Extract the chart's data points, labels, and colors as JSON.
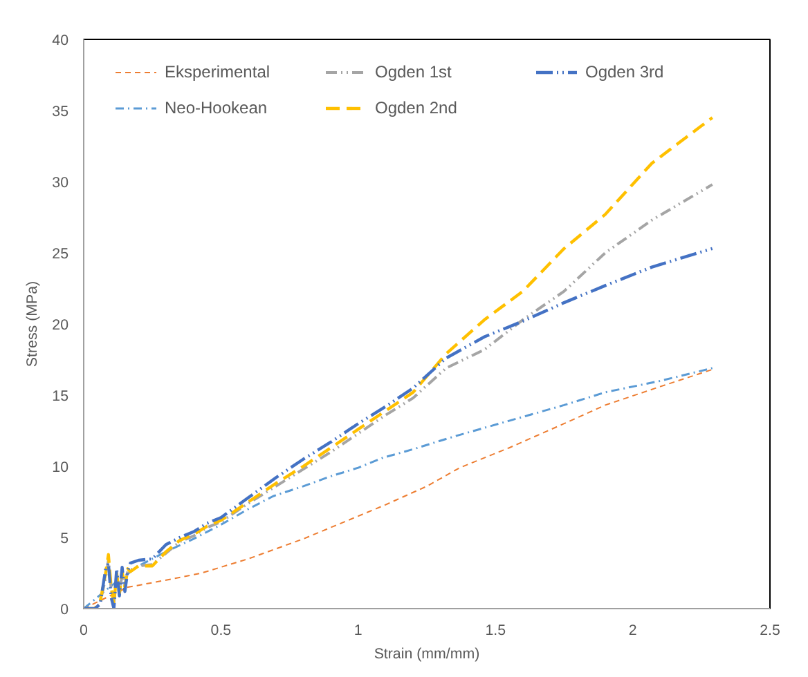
{
  "chart_data": {
    "type": "line",
    "xlabel": "Strain (mm/mm)",
    "ylabel": "Stress (MPa)",
    "xlim": [
      0,
      2.5
    ],
    "xticks": [
      0,
      0.5,
      1,
      1.5,
      2,
      2.5
    ],
    "ylim": [
      0,
      40
    ],
    "yticks": [
      0,
      5,
      10,
      15,
      20,
      25,
      30,
      35,
      40
    ],
    "grid": false,
    "legend": "top",
    "series": [
      {
        "name": "Eksperimental",
        "color": "#ed7d31",
        "line_style": "dashed",
        "x": [
          0,
          0.16,
          0.3,
          0.43,
          0.6,
          0.8,
          0.95,
          1.1,
          1.25,
          1.37,
          1.55,
          1.75,
          1.9,
          2.1,
          2.29
        ],
        "values": [
          0,
          1.5,
          2.0,
          2.5,
          3.5,
          4.9,
          6.1,
          7.3,
          8.6,
          9.9,
          11.3,
          13.0,
          14.3,
          15.6,
          16.8
        ]
      },
      {
        "name": "Neo-Hookean",
        "color": "#5b9bd5",
        "line_style": "dashdot",
        "x": [
          0,
          0.1,
          0.2,
          0.3,
          0.4,
          0.5,
          0.6,
          0.69,
          0.8,
          0.9,
          1.0,
          1.09,
          1.2,
          1.35,
          1.55,
          1.75,
          1.9,
          2.1,
          2.29
        ],
        "values": [
          0,
          1.6,
          3.0,
          4.0,
          4.9,
          5.9,
          7.0,
          7.9,
          8.6,
          9.3,
          9.9,
          10.6,
          11.2,
          12.1,
          13.2,
          14.3,
          15.2,
          16.0,
          16.9
        ]
      },
      {
        "name": "Ogden 1st",
        "color": "#a5a5a5",
        "line_style": "dashdotdot",
        "x": [
          0,
          0.04,
          0.06,
          0.08,
          0.09,
          0.1,
          0.11,
          0.12,
          0.13,
          0.14,
          0.15,
          0.16,
          0.17,
          0.2,
          0.25,
          0.3,
          0.35,
          0.4,
          0.45,
          0.5,
          0.6,
          0.7,
          0.8,
          0.9,
          1.0,
          1.1,
          1.2,
          1.32,
          1.46,
          1.6,
          1.75,
          1.9,
          2.07,
          2.29
        ],
        "values": [
          0,
          0,
          0.4,
          2.2,
          3.4,
          1.4,
          0.4,
          2.3,
          1.1,
          2.4,
          1.6,
          2.6,
          2.7,
          3.0,
          3.1,
          3.9,
          4.7,
          5.1,
          5.7,
          6.1,
          7.4,
          8.6,
          9.8,
          11.0,
          12.3,
          13.6,
          14.8,
          16.9,
          18.2,
          20.3,
          22.3,
          25.0,
          27.3,
          29.8
        ]
      },
      {
        "name": "Ogden 2nd",
        "color": "#ffc000",
        "line_style": "longdash",
        "x": [
          0,
          0.04,
          0.06,
          0.08,
          0.09,
          0.1,
          0.11,
          0.12,
          0.13,
          0.14,
          0.15,
          0.16,
          0.17,
          0.2,
          0.25,
          0.3,
          0.35,
          0.4,
          0.45,
          0.5,
          0.6,
          0.7,
          0.8,
          0.9,
          1.0,
          1.1,
          1.2,
          1.32,
          1.46,
          1.6,
          1.75,
          1.9,
          2.07,
          2.29
        ],
        "values": [
          0,
          0,
          0.5,
          2.5,
          3.8,
          1.5,
          0.3,
          2.5,
          1.0,
          2.6,
          1.5,
          2.8,
          2.6,
          3.0,
          3.0,
          4.0,
          4.8,
          5.2,
          5.8,
          6.2,
          7.5,
          8.8,
          10.0,
          11.3,
          12.6,
          13.9,
          15.2,
          17.9,
          20.3,
          22.3,
          25.3,
          27.7,
          31.3,
          34.5
        ]
      },
      {
        "name": "Ogden 3rd",
        "color": "#4472c4",
        "line_style": "longdashdotdot",
        "x": [
          0,
          0.04,
          0.06,
          0.08,
          0.09,
          0.1,
          0.11,
          0.12,
          0.13,
          0.14,
          0.15,
          0.16,
          0.17,
          0.2,
          0.25,
          0.3,
          0.35,
          0.4,
          0.45,
          0.5,
          0.6,
          0.7,
          0.8,
          0.9,
          1.0,
          1.1,
          1.2,
          1.32,
          1.46,
          1.6,
          1.75,
          1.9,
          2.07,
          2.29
        ],
        "values": [
          0,
          0,
          0.3,
          2.8,
          3.2,
          0.8,
          0,
          2.8,
          0.9,
          2.9,
          1.2,
          2.6,
          3.2,
          3.4,
          3.5,
          4.5,
          5.0,
          5.4,
          6.0,
          6.4,
          7.8,
          9.2,
          10.5,
          11.7,
          13.0,
          14.2,
          15.5,
          17.6,
          19.1,
          20.2,
          21.5,
          22.7,
          24.0,
          25.3
        ]
      }
    ]
  }
}
